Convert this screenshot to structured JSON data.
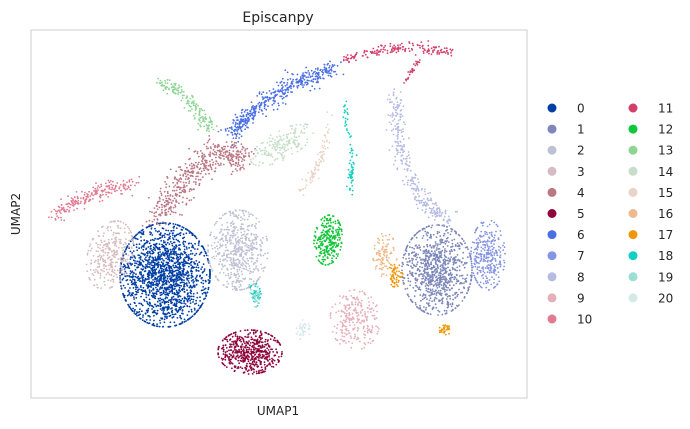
{
  "chart_data": {
    "type": "scatter",
    "title": "Episcanpy",
    "xlabel": "UMAP1",
    "ylabel": "UMAP2",
    "grid": false,
    "legend": "right",
    "xticks": false,
    "yticks": false,
    "series": [
      {
        "name": "0",
        "color": "#023fa5"
      },
      {
        "name": "1",
        "color": "#7d87b9"
      },
      {
        "name": "2",
        "color": "#bec1d4"
      },
      {
        "name": "3",
        "color": "#d6bcc0"
      },
      {
        "name": "4",
        "color": "#bb7784"
      },
      {
        "name": "5",
        "color": "#8e063b"
      },
      {
        "name": "6",
        "color": "#4a6fe3"
      },
      {
        "name": "7",
        "color": "#8595e1"
      },
      {
        "name": "8",
        "color": "#b5bbe3"
      },
      {
        "name": "9",
        "color": "#e6afb9"
      },
      {
        "name": "10",
        "color": "#e07b91"
      },
      {
        "name": "11",
        "color": "#d33f6a"
      },
      {
        "name": "12",
        "color": "#11c638"
      },
      {
        "name": "13",
        "color": "#8dd593"
      },
      {
        "name": "14",
        "color": "#c6dec7"
      },
      {
        "name": "15",
        "color": "#ead3c6"
      },
      {
        "name": "16",
        "color": "#f0b98d"
      },
      {
        "name": "17",
        "color": "#ef9708"
      },
      {
        "name": "18",
        "color": "#0fcfc0"
      },
      {
        "name": "19",
        "color": "#9cded6"
      },
      {
        "name": "20",
        "color": "#d5eae7"
      }
    ]
  }
}
